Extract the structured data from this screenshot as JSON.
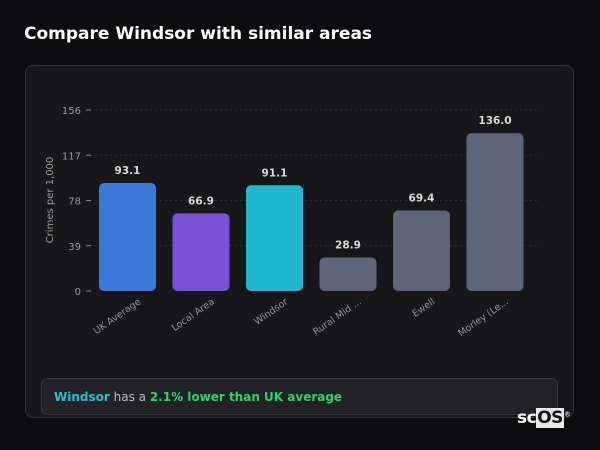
{
  "page_title": "Compare Windsor with similar areas",
  "chart_data": {
    "type": "bar",
    "title": "",
    "xlabel": "",
    "ylabel": "Crimes per 1,000",
    "ylim": [
      0,
      156
    ],
    "yticks": [
      0,
      39,
      78,
      117,
      156
    ],
    "grid": true,
    "categories": [
      "UK Average",
      "Local Area",
      "Windsor",
      "Rural Mid ...",
      "Ewell",
      "Morley (Le..."
    ],
    "values": [
      93.1,
      66.9,
      91.1,
      28.9,
      69.4,
      136.0
    ],
    "value_labels": [
      "93.1",
      "66.9",
      "91.1",
      "28.9",
      "69.4",
      "136.0"
    ],
    "colors": [
      "#3b78dc",
      "#7a52d6",
      "#20b8cf",
      "#5c6678",
      "#5c6678",
      "#5c6678"
    ]
  },
  "summary": {
    "area": "Windsor",
    "middle": " has a ",
    "comparison": "2.1% lower than UK average"
  },
  "logo": {
    "text_a": "sc",
    "text_b": "OS",
    "mark": "®"
  }
}
